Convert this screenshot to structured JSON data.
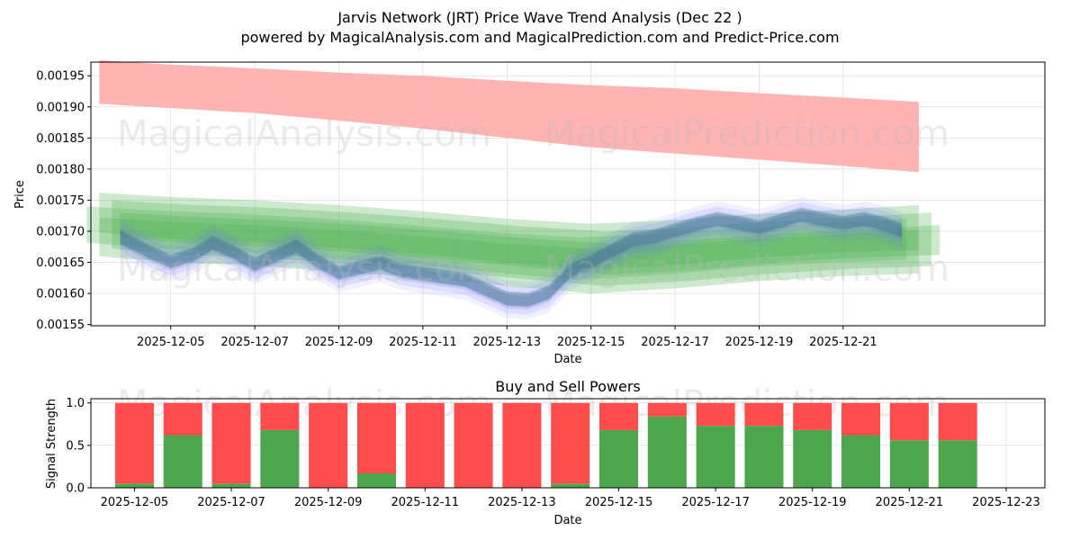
{
  "title": "Jarvis Network (JRT) Price Wave Trend Analysis (Dec 22 )",
  "subtitle": "powered by MagicalAnalysis.com and MagicalPrediction.com and Predict-Price.com",
  "watermarks": [
    "MagicalAnalysis.com",
    "MagicalPrediction.com"
  ],
  "colors": {
    "sell": "#ff4d4d",
    "buy": "#4da64d",
    "red_band": "#ffb0b0",
    "green_band": "#4caf50",
    "blue_band": "#6b6bff"
  },
  "chart_data": [
    {
      "type": "area",
      "name": "price-wave",
      "xlabel": "Date",
      "ylabel": "Price",
      "xlim": [
        -1.9,
        20.8
      ],
      "ylim": [
        0.001548,
        0.001972
      ],
      "x_tick_labels": [
        "2025-12-05",
        "2025-12-07",
        "2025-12-09",
        "2025-12-11",
        "2025-12-13",
        "2025-12-15",
        "2025-12-17",
        "2025-12-19",
        "2025-12-21"
      ],
      "x_tick_values": [
        0,
        2,
        4,
        6,
        8,
        10,
        12,
        14,
        16
      ],
      "y_tick_labels": [
        "0.00155",
        "0.00160",
        "0.00165",
        "0.00170",
        "0.00175",
        "0.00180",
        "0.00185",
        "0.00190",
        "0.00195"
      ],
      "y_tick_values": [
        0.00155,
        0.0016,
        0.00165,
        0.0017,
        0.00175,
        0.0018,
        0.00185,
        0.0019,
        0.00195
      ],
      "series": [
        {
          "name": "resistance-band",
          "x": [
            -1.7,
            0,
            2,
            4,
            6,
            8,
            10,
            12,
            14,
            16,
            17.8
          ],
          "upper": [
            0.001975,
            0.001968,
            0.001962,
            0.001955,
            0.00195,
            0.001942,
            0.001935,
            0.00193,
            0.001922,
            0.001915,
            0.001908
          ],
          "lower": [
            0.001905,
            0.001898,
            0.00189,
            0.001878,
            0.001865,
            0.00185,
            0.001835,
            0.001825,
            0.001815,
            0.001805,
            0.001795
          ]
        },
        {
          "name": "green-trend-bands",
          "x": [
            -1.7,
            0,
            2,
            4,
            6,
            8,
            10,
            12,
            14,
            16,
            17.8
          ],
          "upper": [
            0.001762,
            0.001755,
            0.00175,
            0.001742,
            0.001732,
            0.00172,
            0.001712,
            0.001718,
            0.001728,
            0.001735,
            0.001742
          ],
          "lower": [
            0.00166,
            0.00165,
            0.001645,
            0.001635,
            0.001625,
            0.001612,
            0.0016,
            0.001608,
            0.00162,
            0.001628,
            0.001632
          ]
        },
        {
          "name": "blue-price-wave",
          "x": [
            -1.2,
            -0.5,
            0,
            0.5,
            1,
            1.5,
            2,
            2.5,
            3,
            3.5,
            4,
            4.5,
            5,
            5.5,
            6,
            6.5,
            7,
            7.5,
            8,
            8.5,
            9,
            9.5,
            10,
            10.5,
            11,
            11.5,
            12,
            12.5,
            13,
            13.5,
            14,
            14.5,
            15,
            15.5,
            16,
            16.5,
            17,
            17.4
          ],
          "values": [
            0.00169,
            0.001665,
            0.00165,
            0.00166,
            0.00168,
            0.001665,
            0.001645,
            0.00166,
            0.001675,
            0.00165,
            0.001632,
            0.00164,
            0.001648,
            0.001635,
            0.00163,
            0.001625,
            0.00162,
            0.001605,
            0.00159,
            0.001588,
            0.0016,
            0.001635,
            0.00165,
            0.001668,
            0.001685,
            0.00169,
            0.0017,
            0.00171,
            0.001718,
            0.001712,
            0.001705,
            0.001715,
            0.001725,
            0.001718,
            0.001712,
            0.001718,
            0.00171,
            0.0017
          ]
        }
      ]
    },
    {
      "type": "bar",
      "name": "buy-sell-powers",
      "title": "Buy and Sell Powers",
      "xlabel": "Date",
      "ylabel": "Signal Strength",
      "ylim": [
        0,
        1.05
      ],
      "xlim": [
        -0.9,
        18.8
      ],
      "x_tick_labels": [
        "2025-12-05",
        "2025-12-07",
        "2025-12-09",
        "2025-12-11",
        "2025-12-13",
        "2025-12-15",
        "2025-12-17",
        "2025-12-19",
        "2025-12-21",
        "2025-12-23"
      ],
      "x_tick_values": [
        0,
        2,
        4,
        6,
        8,
        10,
        12,
        14,
        16,
        18
      ],
      "y_tick_labels": [
        "0.0",
        "0.5",
        "1.0"
      ],
      "y_tick_values": [
        0,
        0.5,
        1.0
      ],
      "categories": [
        "2025-12-05",
        "2025-12-06",
        "2025-12-07",
        "2025-12-08",
        "2025-12-09",
        "2025-12-10",
        "2025-12-11",
        "2025-12-12",
        "2025-12-13",
        "2025-12-14",
        "2025-12-15",
        "2025-12-16",
        "2025-12-17",
        "2025-12-18",
        "2025-12-19",
        "2025-12-20",
        "2025-12-21",
        "2025-12-22"
      ],
      "series": [
        {
          "name": "Buy",
          "values": [
            0.05,
            0.62,
            0.05,
            0.68,
            0.0,
            0.17,
            0.0,
            0.0,
            0.0,
            0.05,
            0.68,
            0.84,
            0.73,
            0.73,
            0.68,
            0.62,
            0.56,
            0.56
          ]
        },
        {
          "name": "Sell",
          "values": [
            0.95,
            0.38,
            0.95,
            0.32,
            1.0,
            0.83,
            1.0,
            1.0,
            1.0,
            0.95,
            0.32,
            0.16,
            0.27,
            0.27,
            0.32,
            0.38,
            0.44,
            0.44
          ]
        }
      ]
    }
  ]
}
